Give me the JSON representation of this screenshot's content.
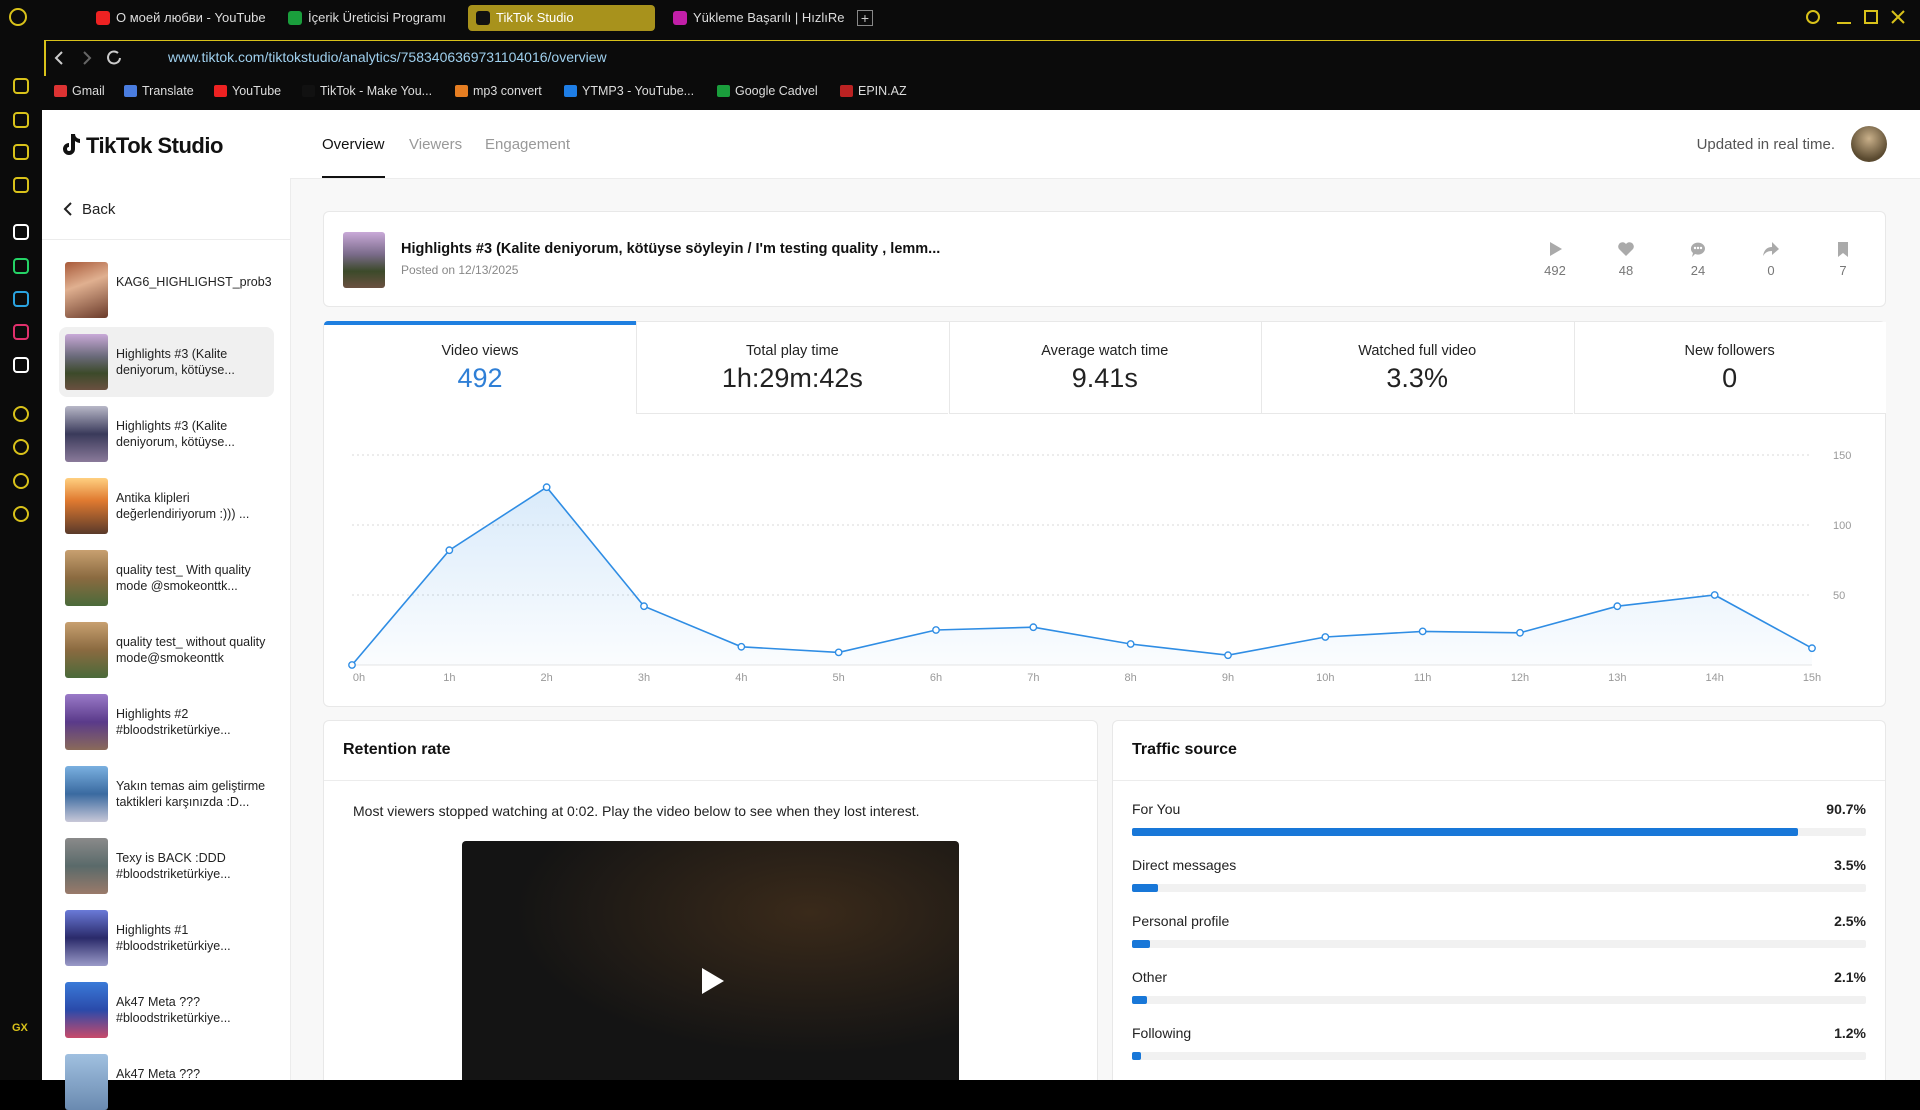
{
  "browser": {
    "tabs": [
      "О моей любви - YouTube",
      "İçerik Üreticisi Programı",
      "TikTok Studio",
      "Yükleme Başarılı | HızlıRe"
    ],
    "url": "www.tiktok.com/tiktokstudio/analytics/7583406369731104016/overview",
    "bookmarks": [
      "Gmail",
      "Translate",
      "YouTube",
      "TikTok - Make You...",
      "mp3 convert",
      "YTMP3 - YouTube...",
      "Google Cadvel",
      "EPIN.AZ"
    ],
    "sidebar_label": "GX"
  },
  "studio": {
    "logo": "TikTok Studio",
    "nav": [
      "Overview",
      "Viewers",
      "Engagement"
    ],
    "status": "Updated in real time.",
    "back": "Back",
    "videos": [
      "KAG6_HIGHLIGHST_prob3",
      "Highlights #3 (Kalite deniyorum, kötüyse...",
      "Highlights #3 (Kalite deniyorum, kötüyse...",
      "Antika klipleri değerlendiriyorum :))) ...",
      "quality test_ With quality mode @smokeonttk...",
      "quality test_ without quality mode@smokeonttk",
      "Highlights #2 #bloodstriketürkiye...",
      "Yakın temas aim geliştirme taktikleri karşınızda :D...",
      "Texy is BACK :DDD #bloodstriketürkiye...",
      "Highlights #1 #bloodstriketürkiye...",
      "Ak47 Meta ??? #bloodstriketürkiye...",
      "Ak47 Meta ???"
    ]
  },
  "video": {
    "title": "Highlights #3 (Kalite deniyorum, kötüyse söyleyin / I'm testing quality , lemm...",
    "posted": "Posted on 12/13/2025",
    "stats": [
      "492",
      "48",
      "24",
      "0",
      "7"
    ]
  },
  "metrics": [
    {
      "label": "Video views",
      "value": "492"
    },
    {
      "label": "Total play time",
      "value": "1h:29m:42s"
    },
    {
      "label": "Average watch time",
      "value": "9.41s"
    },
    {
      "label": "Watched full video",
      "value": "3.3%"
    },
    {
      "label": "New followers",
      "value": "0"
    }
  ],
  "chart_data": {
    "type": "line",
    "categories": [
      "0h",
      "1h",
      "2h",
      "3h",
      "4h",
      "5h",
      "6h",
      "7h",
      "8h",
      "9h",
      "10h",
      "11h",
      "12h",
      "13h",
      "14h",
      "15h"
    ],
    "values": [
      0,
      82,
      127,
      42,
      13,
      9,
      25,
      27,
      15,
      7,
      20,
      24,
      23,
      42,
      50,
      12
    ],
    "color": "#2f8de4",
    "ylim": [
      0,
      150
    ],
    "yticks": [
      50,
      100,
      150
    ],
    "grid": true
  },
  "retention": {
    "title": "Retention rate",
    "message": "Most viewers stopped watching at 0:02. Play the video below to see when they lost interest."
  },
  "traffic": {
    "title": "Traffic source",
    "xlim": [
      0,
      100
    ],
    "items": [
      {
        "name": "For You",
        "value": 90.7,
        "label": "90.7%"
      },
      {
        "name": "Direct messages",
        "value": 3.5,
        "label": "3.5%"
      },
      {
        "name": "Personal profile",
        "value": 2.5,
        "label": "2.5%"
      },
      {
        "name": "Other",
        "value": 2.1,
        "label": "2.1%"
      },
      {
        "name": "Following",
        "value": 1.2,
        "label": "1.2%"
      }
    ]
  }
}
